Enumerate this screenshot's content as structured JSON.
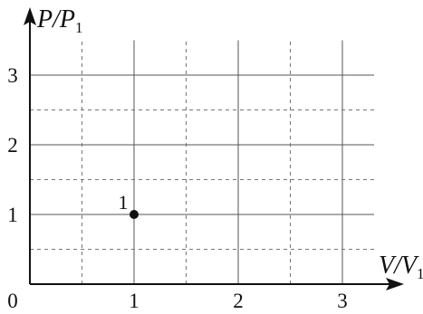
{
  "chart_data": {
    "type": "scatter",
    "title": "",
    "xlabel": {
      "main": "V/V",
      "sub": "1"
    },
    "ylabel": {
      "main": "P/P",
      "sub": "1"
    },
    "origin_label": "0",
    "xlim": [
      0,
      3.5
    ],
    "ylim": [
      0,
      3.5
    ],
    "x_ticks": [
      1,
      2,
      3
    ],
    "y_ticks": [
      1,
      2,
      3
    ],
    "x_tick_labels": [
      "1",
      "2",
      "3"
    ],
    "y_tick_labels": [
      "1",
      "2",
      "3"
    ],
    "major_grid": "solid",
    "minor_grid": "dashed",
    "grid_step": 0.5,
    "points": [
      {
        "x": 1,
        "y": 1,
        "label": "1"
      }
    ],
    "colors": {
      "axis": "#111111",
      "major_grid": "#555555",
      "minor_grid": "#777777",
      "point": "#111111"
    }
  }
}
